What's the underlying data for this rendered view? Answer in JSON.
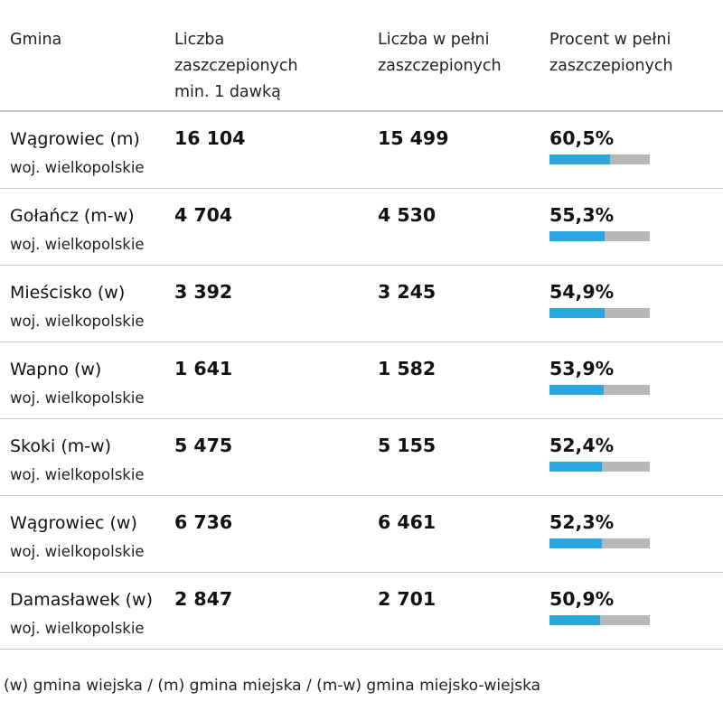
{
  "header": {
    "gmina": "Gmina",
    "min1": [
      "Liczba",
      "zaszczepionych",
      "min. 1 dawką"
    ],
    "full": [
      "Liczba w pełni",
      "zaszczepionych"
    ],
    "pct": [
      "Procent w pełni",
      "zaszczepionych"
    ]
  },
  "rows": [
    {
      "name": "Wągrowiec (m)",
      "voivodeship": "woj. wielkopolskie",
      "min1": "16 104",
      "full": "15 499",
      "pct_label": "60,5%",
      "pct_value": 60.5
    },
    {
      "name": "Gołańcz (m-w)",
      "voivodeship": "woj. wielkopolskie",
      "min1": "4 704",
      "full": "4 530",
      "pct_label": "55,3%",
      "pct_value": 55.3
    },
    {
      "name": "Mieścisko (w)",
      "voivodeship": "woj. wielkopolskie",
      "min1": "3 392",
      "full": "3 245",
      "pct_label": "54,9%",
      "pct_value": 54.9
    },
    {
      "name": "Wapno (w)",
      "voivodeship": "woj. wielkopolskie",
      "min1": "1 641",
      "full": "1 582",
      "pct_label": "53,9%",
      "pct_value": 53.9
    },
    {
      "name": "Skoki (m-w)",
      "voivodeship": "woj. wielkopolskie",
      "min1": "5 475",
      "full": "5 155",
      "pct_label": "52,4%",
      "pct_value": 52.4
    },
    {
      "name": "Wągrowiec (w)",
      "voivodeship": "woj. wielkopolskie",
      "min1": "6 736",
      "full": "6 461",
      "pct_label": "52,3%",
      "pct_value": 52.3
    },
    {
      "name": "Damasławek (w)",
      "voivodeship": "woj. wielkopolskie",
      "min1": "2 847",
      "full": "2 701",
      "pct_label": "50,9%",
      "pct_value": 50.9
    }
  ],
  "footnote": "(w) gmina wiejska / (m) gmina miejska / (m-w) gmina miejsko-wiejska",
  "colors": {
    "bar_fill": "#2aa7df",
    "bar_track": "#b7b7b7",
    "divider": "#c6c6c6"
  }
}
